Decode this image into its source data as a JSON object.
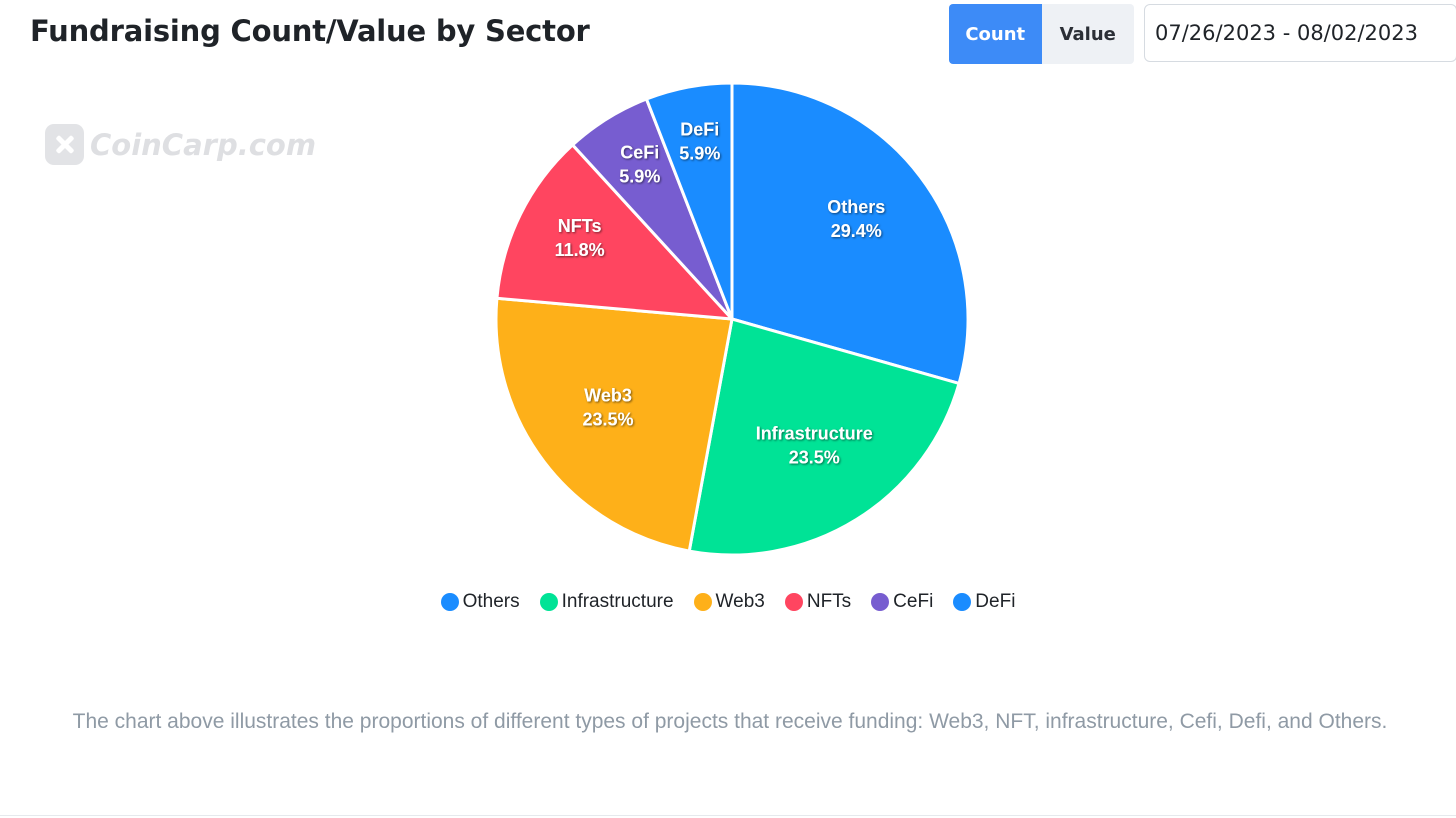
{
  "header": {
    "title": "Fundraising Count/Value by Sector",
    "toggle": {
      "count_label": "Count",
      "value_label": "Value",
      "active": "Count"
    },
    "date_range": "07/26/2023 - 08/02/2023"
  },
  "watermark": {
    "text": "CoinCarp.com"
  },
  "chart_data": {
    "type": "pie",
    "title": "",
    "start_angle_deg": 0,
    "direction": "clockwise",
    "slices": [
      {
        "label": "Others",
        "value": 29.4,
        "display": "29.4%",
        "color": "#1a8cff"
      },
      {
        "label": "Infrastructure",
        "value": 23.5,
        "display": "23.5%",
        "color": "#00e396"
      },
      {
        "label": "Web3",
        "value": 23.5,
        "display": "23.5%",
        "color": "#feb019"
      },
      {
        "label": "NFTs",
        "value": 11.8,
        "display": "11.8%",
        "color": "#ff4560"
      },
      {
        "label": "CeFi",
        "value": 5.9,
        "display": "5.9%",
        "color": "#775dd0"
      },
      {
        "label": "DeFi",
        "value": 5.9,
        "display": "5.9%",
        "color": "#1a8cff"
      }
    ],
    "legend": {
      "position": "bottom",
      "items": [
        "Others",
        "Infrastructure",
        "Web3",
        "NFTs",
        "CeFi",
        "DeFi"
      ]
    }
  },
  "caption": "The chart above illustrates the proportions of different types of projects that receive funding: Web3, NFT, infrastructure, Cefi, Defi, and Others."
}
